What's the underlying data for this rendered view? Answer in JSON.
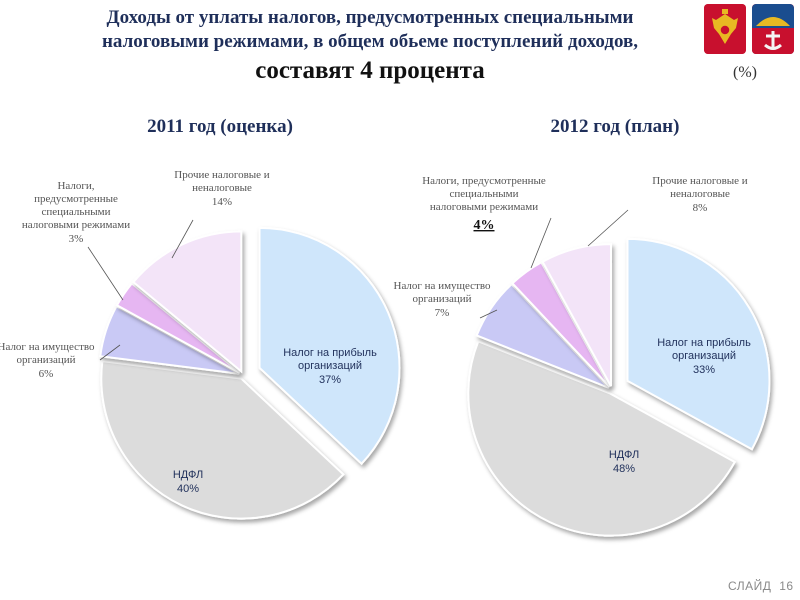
{
  "header": {
    "line1": "Доходы от уплаты налогов, предусмотренных специальными",
    "line2": "налоговыми режимами, в общем обьеме поступлений доходов,",
    "line3": "составят  4 процента",
    "unit": "(%)"
  },
  "emblems": {
    "left": "russia-coat-of-arms-icon",
    "right": "murmansk-region-coat-of-arms-icon",
    "color": "#c8102e"
  },
  "footer": {
    "label": "СЛАЙД",
    "number": "16"
  },
  "chart_data": [
    {
      "type": "pie",
      "title": "2011 год (оценка)",
      "slices": [
        {
          "label": [
            "Налог на прибыль",
            "организаций"
          ],
          "value": 37,
          "value_label": "37%",
          "color": "#cfe6fb"
        },
        {
          "label": [
            "НДФЛ"
          ],
          "value": 40,
          "value_label": "40%",
          "color": "#dcdcdc"
        },
        {
          "label": [
            "Налог на имущество",
            "организаций"
          ],
          "value": 6,
          "value_label": "6%",
          "color": "#c9c9f5"
        },
        {
          "label": [
            "Налоги,",
            "предусмотренные",
            "специальными",
            "налоговыми режимами"
          ],
          "value": 3,
          "value_label": "3%",
          "color": "#e6b6f2"
        },
        {
          "label": [
            "Прочие налоговые и",
            "неналоговые"
          ],
          "value": 14,
          "value_label": "14%",
          "color": "#f3e4f8"
        }
      ]
    },
    {
      "type": "pie",
      "title": "2012 год (план)",
      "slices": [
        {
          "label": [
            "Налог на прибыль",
            "организаций"
          ],
          "value": 33,
          "value_label": "33%",
          "color": "#cfe6fb"
        },
        {
          "label": [
            "НДФЛ"
          ],
          "value": 48,
          "value_label": "48%",
          "color": "#dcdcdc"
        },
        {
          "label": [
            "Налог на имущество",
            "организаций"
          ],
          "value": 7,
          "value_label": "7%",
          "color": "#c9c9f5"
        },
        {
          "label": [
            "Налоги, предусмотренные",
            "специальными",
            "налоговыми режимами"
          ],
          "value": 4,
          "value_label": "4%",
          "color": "#e6b6f2"
        },
        {
          "label": [
            "Прочие налоговые и",
            "неналоговые"
          ],
          "value": 8,
          "value_label": "8%",
          "color": "#f3e4f8"
        }
      ]
    }
  ]
}
